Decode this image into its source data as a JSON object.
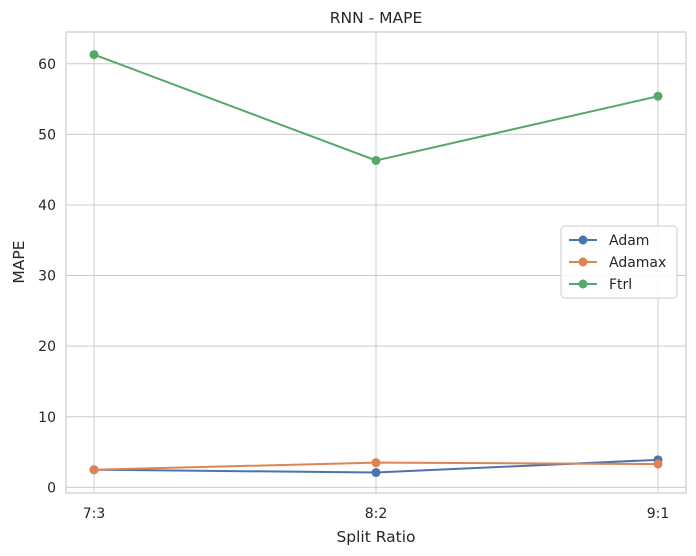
{
  "chart_data": {
    "type": "line",
    "title": "RNN - MAPE",
    "xlabel": "Split Ratio",
    "ylabel": "MAPE",
    "categories": [
      "7:3",
      "8:2",
      "9:1"
    ],
    "ylim": [
      -0.8,
      64.5
    ],
    "yticks": [
      0,
      10,
      20,
      30,
      40,
      50,
      60
    ],
    "grid": true,
    "legend_position": "center-right",
    "series": [
      {
        "name": "Adam",
        "values": [
          2.5,
          2.1,
          3.9
        ],
        "color": "#4c72b0"
      },
      {
        "name": "Adamax",
        "values": [
          2.5,
          3.5,
          3.3
        ],
        "color": "#dd8452"
      },
      {
        "name": "Ftrl",
        "values": [
          61.3,
          46.3,
          55.4
        ],
        "color": "#55a868"
      }
    ]
  }
}
